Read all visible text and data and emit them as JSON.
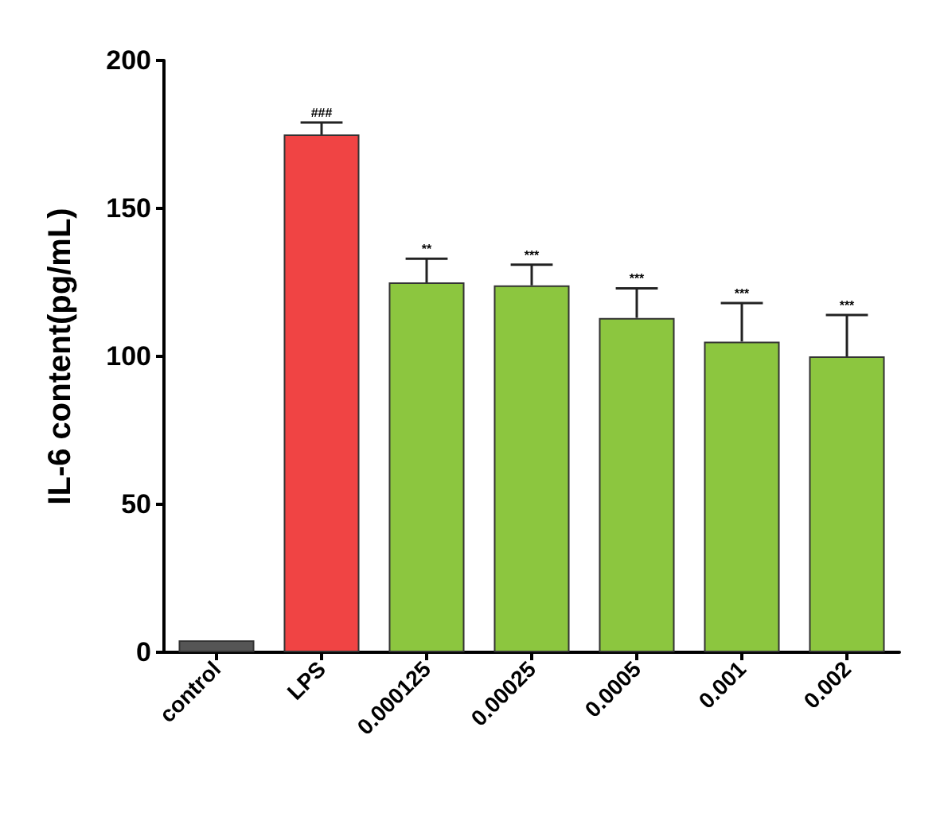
{
  "chart_data": {
    "type": "bar",
    "ylabel": "IL-6 content(pg/mL)",
    "categories": [
      "control",
      "LPS",
      "0.000125",
      "0.00025",
      "0.0005",
      "0.001",
      "0.002"
    ],
    "values": [
      4,
      175,
      125,
      124,
      113,
      105,
      100
    ],
    "colors": [
      "#555555",
      "#f04444",
      "#8cc63f",
      "#8cc63f",
      "#8cc63f",
      "#8cc63f",
      "#8cc63f"
    ],
    "errors": [
      null,
      [
        175,
        179
      ],
      [
        125,
        133
      ],
      [
        124,
        131
      ],
      [
        113,
        123
      ],
      [
        105,
        118
      ],
      [
        100,
        114
      ]
    ],
    "ylim": [
      0,
      200
    ],
    "yticks": [
      0,
      50,
      100,
      150,
      200
    ],
    "grid": false,
    "annotations": [
      {
        "text": "###",
        "x": "LPS",
        "y": 179
      },
      {
        "text": "**",
        "x": "0.000125",
        "y": 133
      },
      {
        "text": "***",
        "x": "0.00025",
        "y": 131
      },
      {
        "text": "***",
        "x": "0.0005",
        "y": 123
      },
      {
        "text": "***",
        "x": "0.001",
        "y": 118
      },
      {
        "text": "***",
        "x": "0.002",
        "y": 114
      }
    ]
  }
}
